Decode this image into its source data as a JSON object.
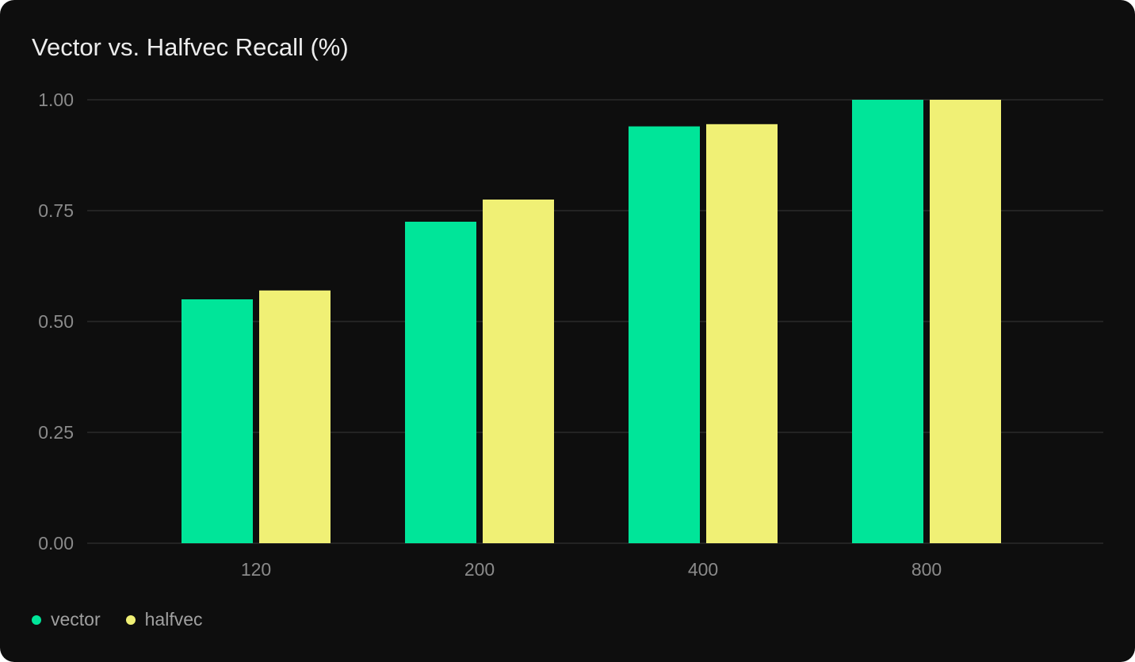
{
  "chart_data": {
    "type": "bar",
    "title": "Vector vs. Halfvec Recall (%)",
    "categories": [
      "120",
      "200",
      "400",
      "800"
    ],
    "series": [
      {
        "name": "vector",
        "color": "#00e599",
        "values": [
          0.55,
          0.725,
          0.94,
          1.0
        ]
      },
      {
        "name": "halfvec",
        "color": "#f0f075",
        "values": [
          0.57,
          0.775,
          0.945,
          1.0
        ]
      }
    ],
    "yticks": [
      "0.00",
      "0.25",
      "0.50",
      "0.75",
      "1.00"
    ],
    "ylim": [
      0,
      1
    ],
    "grid": true,
    "legend": "bottom-left"
  }
}
